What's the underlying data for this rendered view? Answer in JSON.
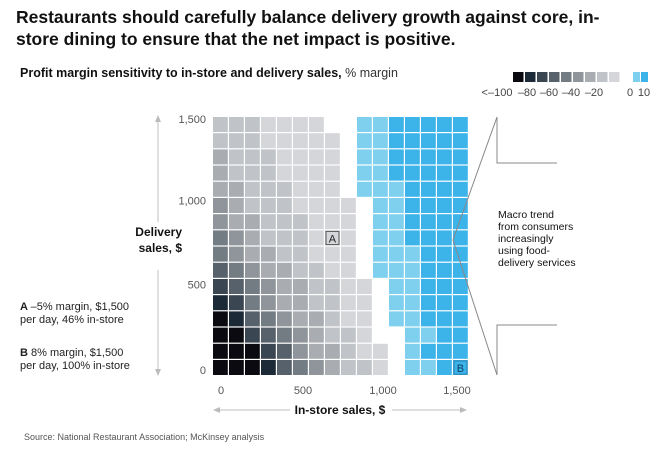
{
  "title": "Restaurants should carefully balance delivery growth against core, in-store dining to ensure that the net impact is positive.",
  "subtitle": {
    "bold": "Profit margin sensitivity to in-store and delivery sales,",
    "unit": "% margin"
  },
  "source": "Source: National Restaurant Association; McKinsey analysis",
  "colors": {
    "scale": [
      "#0a0a10",
      "#1c2a38",
      "#3a4652",
      "#57616b",
      "#737b83",
      "#8f959b",
      "#a9adb2",
      "#c0c3c7",
      "#d4d6d9",
      "#ffffff",
      "#7fd0ee",
      "#3cb4ea"
    ],
    "text": "#111111",
    "axis": "#cccccc",
    "bracket": "#888888"
  },
  "annotations": {
    "A": {
      "label": "A",
      "desc_bold": "A",
      "desc": "–5% margin, $1,500 per day, 46% in-store"
    },
    "B": {
      "label": "B",
      "desc_bold": "B",
      "desc": "8% margin, $1,500 per day, 100% in-store"
    },
    "macro_trend": [
      "Macro trend",
      "from consumers",
      "increasingly",
      "using food-",
      "delivery services"
    ]
  },
  "chart_data": {
    "type": "heatmap",
    "title": "Profit margin sensitivity to in-store and delivery sales, % margin",
    "xlabel": "In-store sales, $",
    "ylabel": "Delivery sales, $",
    "x_ticks": [
      "0",
      "500",
      "1,000",
      "1,500"
    ],
    "y_ticks": [
      "0",
      "500",
      "1,000",
      "1,500"
    ],
    "xlim": [
      0,
      1500
    ],
    "ylim": [
      0,
      1500
    ],
    "legend": {
      "placement": "top-right",
      "labels": [
        "<–100",
        "–80",
        "–60",
        "–40",
        "–20",
        "0",
        "10"
      ],
      "bins": [
        "<-100",
        "-90",
        "-80",
        "-70",
        "-60",
        "-50",
        "-40",
        "-30",
        "-20",
        "0",
        "5",
        "10"
      ]
    },
    "grid_note": "rows listed top (delivery 1,500) to bottom (delivery 0); columns in-store 0 to 1,500; values are color-bin indexes into colors.scale",
    "cells": [
      [
        7,
        7,
        7,
        8,
        8,
        8,
        8,
        9,
        9,
        10,
        10,
        11,
        11,
        11,
        11,
        11
      ],
      [
        7,
        7,
        7,
        8,
        8,
        8,
        8,
        8,
        9,
        10,
        10,
        11,
        11,
        11,
        11,
        11
      ],
      [
        6,
        7,
        7,
        7,
        8,
        8,
        8,
        8,
        9,
        10,
        10,
        11,
        11,
        11,
        11,
        11
      ],
      [
        6,
        7,
        7,
        7,
        8,
        8,
        8,
        8,
        9,
        10,
        10,
        11,
        11,
        11,
        11,
        11
      ],
      [
        6,
        6,
        7,
        7,
        7,
        8,
        8,
        8,
        9,
        10,
        10,
        10,
        11,
        11,
        11,
        11
      ],
      [
        5,
        6,
        7,
        7,
        7,
        8,
        8,
        8,
        8,
        9,
        10,
        10,
        11,
        11,
        11,
        11
      ],
      [
        5,
        6,
        6,
        7,
        7,
        7,
        8,
        8,
        8,
        9,
        10,
        10,
        11,
        11,
        11,
        11
      ],
      [
        4,
        5,
        6,
        7,
        7,
        7,
        8,
        8,
        8,
        9,
        10,
        10,
        11,
        11,
        11,
        11
      ],
      [
        4,
        5,
        6,
        6,
        7,
        7,
        8,
        8,
        8,
        9,
        10,
        10,
        10,
        11,
        11,
        11
      ],
      [
        3,
        4,
        5,
        6,
        6,
        7,
        7,
        8,
        8,
        9,
        10,
        10,
        10,
        11,
        11,
        11
      ],
      [
        2,
        3,
        4,
        5,
        6,
        6,
        7,
        7,
        8,
        8,
        9,
        10,
        10,
        11,
        11,
        11
      ],
      [
        1,
        2,
        4,
        5,
        6,
        6,
        7,
        7,
        8,
        8,
        9,
        10,
        10,
        11,
        11,
        11
      ],
      [
        0,
        1,
        3,
        4,
        5,
        6,
        6,
        7,
        8,
        8,
        9,
        10,
        10,
        11,
        11,
        11
      ],
      [
        0,
        0,
        2,
        3,
        4,
        5,
        6,
        7,
        7,
        8,
        9,
        9,
        10,
        10,
        11,
        11
      ],
      [
        0,
        0,
        0,
        2,
        3,
        5,
        6,
        6,
        7,
        8,
        8,
        9,
        10,
        11,
        11,
        11
      ],
      [
        0,
        0,
        0,
        1,
        3,
        4,
        5,
        6,
        7,
        7,
        8,
        9,
        10,
        10,
        11,
        11
      ]
    ],
    "points": [
      {
        "label": "A",
        "instore": 46,
        "margin": -5,
        "total": 1500,
        "row": 7,
        "col": 7
      },
      {
        "label": "B",
        "instore": 100,
        "margin": 8,
        "total": 1500,
        "row": 15,
        "col": 15
      }
    ]
  }
}
